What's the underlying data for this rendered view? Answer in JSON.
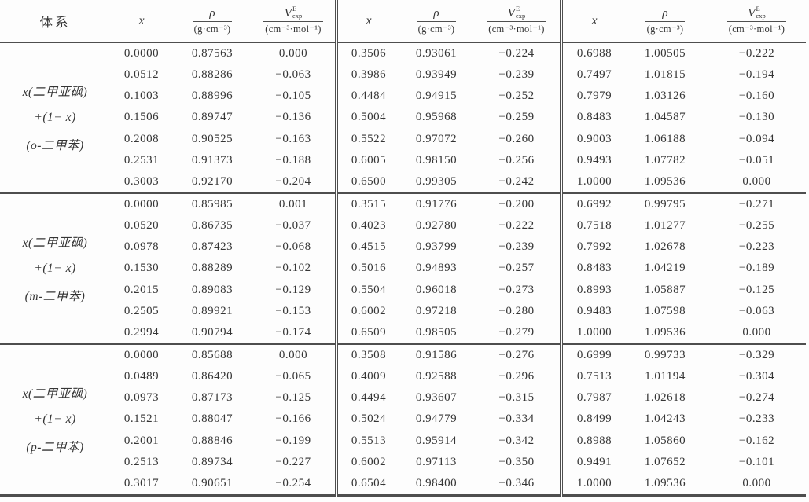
{
  "page": {
    "background": "#fdfdfd",
    "text_color": "#353535",
    "line_color": "#4e4e4e"
  },
  "table": {
    "header": {
      "system_label": "体系",
      "x_label": "x",
      "rho": {
        "num": "ρ",
        "den": "(g·cm⁻³)"
      },
      "v": {
        "base": "V",
        "sup": "E",
        "sub": "exp",
        "den": "(cm⁻³·mol⁻¹)"
      }
    },
    "sections": [
      {
        "system_lines": [
          "x(二甲亚砜)",
          "+(1− x)",
          "(o-二甲苯)"
        ],
        "groups": [
          {
            "rows": [
              [
                "0.0000",
                "0.87563",
                "0.000"
              ],
              [
                "0.0512",
                "0.88286",
                "−0.063"
              ],
              [
                "0.1003",
                "0.88996",
                "−0.105"
              ],
              [
                "0.1506",
                "0.89747",
                "−0.136"
              ],
              [
                "0.2008",
                "0.90525",
                "−0.163"
              ],
              [
                "0.2531",
                "0.91373",
                "−0.188"
              ],
              [
                "0.3003",
                "0.92170",
                "−0.204"
              ]
            ]
          },
          {
            "rows": [
              [
                "0.3506",
                "0.93061",
                "−0.224"
              ],
              [
                "0.3986",
                "0.93949",
                "−0.239"
              ],
              [
                "0.4484",
                "0.94915",
                "−0.252"
              ],
              [
                "0.5004",
                "0.95968",
                "−0.259"
              ],
              [
                "0.5522",
                "0.97072",
                "−0.260"
              ],
              [
                "0.6005",
                "0.98150",
                "−0.256"
              ],
              [
                "0.6500",
                "0.99305",
                "−0.242"
              ]
            ]
          },
          {
            "rows": [
              [
                "0.6988",
                "1.00505",
                "−0.222"
              ],
              [
                "0.7497",
                "1.01815",
                "−0.194"
              ],
              [
                "0.7979",
                "1.03126",
                "−0.160"
              ],
              [
                "0.8483",
                "1.04587",
                "−0.130"
              ],
              [
                "0.9003",
                "1.06188",
                "−0.094"
              ],
              [
                "0.9493",
                "1.07782",
                "−0.051"
              ],
              [
                "1.0000",
                "1.09536",
                "0.000"
              ]
            ]
          }
        ]
      },
      {
        "system_lines": [
          "x(二甲亚砜)",
          "+(1− x)",
          "(m-二甲苯)"
        ],
        "groups": [
          {
            "rows": [
              [
                "0.0000",
                "0.85985",
                "0.001"
              ],
              [
                "0.0520",
                "0.86735",
                "−0.037"
              ],
              [
                "0.0978",
                "0.87423",
                "−0.068"
              ],
              [
                "0.1530",
                "0.88289",
                "−0.102"
              ],
              [
                "0.2015",
                "0.89083",
                "−0.129"
              ],
              [
                "0.2505",
                "0.89921",
                "−0.153"
              ],
              [
                "0.2994",
                "0.90794",
                "−0.174"
              ]
            ]
          },
          {
            "rows": [
              [
                "0.3515",
                "0.91776",
                "−0.200"
              ],
              [
                "0.4023",
                "0.92780",
                "−0.222"
              ],
              [
                "0.4515",
                "0.93799",
                "−0.239"
              ],
              [
                "0.5016",
                "0.94893",
                "−0.257"
              ],
              [
                "0.5504",
                "0.96018",
                "−0.273"
              ],
              [
                "0.6002",
                "0.97218",
                "−0.280"
              ],
              [
                "0.6509",
                "0.98505",
                "−0.279"
              ]
            ]
          },
          {
            "rows": [
              [
                "0.6992",
                "0.99795",
                "−0.271"
              ],
              [
                "0.7518",
                "1.01277",
                "−0.255"
              ],
              [
                "0.7992",
                "1.02678",
                "−0.223"
              ],
              [
                "0.8483",
                "1.04219",
                "−0.189"
              ],
              [
                "0.8993",
                "1.05887",
                "−0.125"
              ],
              [
                "0.9483",
                "1.07598",
                "−0.063"
              ],
              [
                "1.0000",
                "1.09536",
                "0.000"
              ]
            ]
          }
        ]
      },
      {
        "system_lines": [
          "x(二甲亚砜)",
          "+(1− x)",
          "(p-二甲苯)"
        ],
        "groups": [
          {
            "rows": [
              [
                "0.0000",
                "0.85688",
                "0.000"
              ],
              [
                "0.0489",
                "0.86420",
                "−0.065"
              ],
              [
                "0.0973",
                "0.87173",
                "−0.125"
              ],
              [
                "0.1521",
                "0.88047",
                "−0.166"
              ],
              [
                "0.2001",
                "0.88846",
                "−0.199"
              ],
              [
                "0.2513",
                "0.89734",
                "−0.227"
              ],
              [
                "0.3017",
                "0.90651",
                "−0.254"
              ]
            ]
          },
          {
            "rows": [
              [
                "0.3508",
                "0.91586",
                "−0.276"
              ],
              [
                "0.4009",
                "0.92588",
                "−0.296"
              ],
              [
                "0.4494",
                "0.93607",
                "−0.315"
              ],
              [
                "0.5024",
                "0.94779",
                "−0.334"
              ],
              [
                "0.5513",
                "0.95914",
                "−0.342"
              ],
              [
                "0.6002",
                "0.97113",
                "−0.350"
              ],
              [
                "0.6504",
                "0.98400",
                "−0.346"
              ]
            ]
          },
          {
            "rows": [
              [
                "0.6999",
                "0.99733",
                "−0.329"
              ],
              [
                "0.7513",
                "1.01194",
                "−0.304"
              ],
              [
                "0.7987",
                "1.02618",
                "−0.274"
              ],
              [
                "0.8499",
                "1.04243",
                "−0.233"
              ],
              [
                "0.8988",
                "1.05860",
                "−0.162"
              ],
              [
                "0.9491",
                "1.07652",
                "−0.101"
              ],
              [
                "1.0000",
                "1.09536",
                "0.000"
              ]
            ]
          }
        ]
      }
    ]
  }
}
